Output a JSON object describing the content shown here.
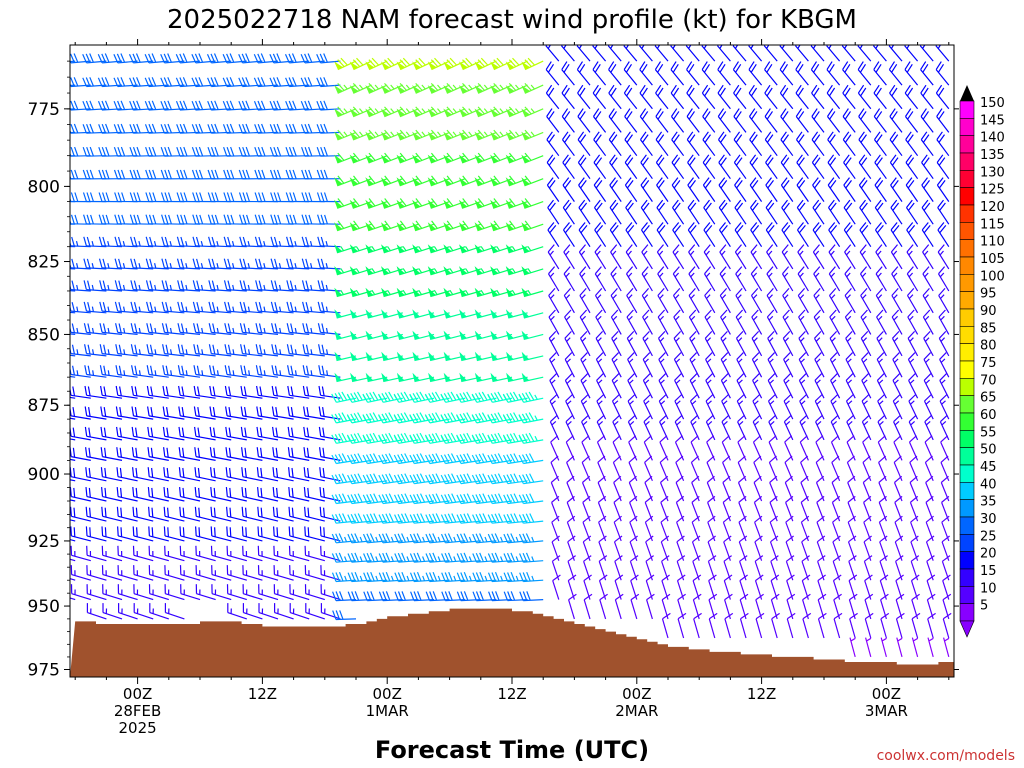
{
  "chart_data": {
    "type": "wind_barb_profile",
    "title": "2025022718 NAM forecast wind profile (kt) for KBGM",
    "xlabel": "Forecast Time (UTC)",
    "ylabel": "",
    "credit": "coolwx.com/models",
    "y_axis": {
      "scale": "pressure (inverted)",
      "ticks": [
        "775",
        "800",
        "825",
        "850",
        "875",
        "900",
        "925",
        "950",
        "975"
      ],
      "ylim": [
        978,
        755
      ]
    },
    "x_axis": {
      "units": "forecast hour",
      "xlim": [
        -6.5,
        78.5
      ],
      "ticks": [
        {
          "hour": 0,
          "line1": "00Z",
          "line2": "28FEB",
          "line3": "2025"
        },
        {
          "hour": 12,
          "line1": "12Z",
          "line2": "",
          "line3": ""
        },
        {
          "hour": 24,
          "line1": "00Z",
          "line2": "1MAR",
          "line3": ""
        },
        {
          "hour": 36,
          "line1": "12Z",
          "line2": "",
          "line3": ""
        },
        {
          "hour": 48,
          "line1": "00Z",
          "line2": "2MAR",
          "line3": ""
        },
        {
          "hour": 60,
          "line1": "12Z",
          "line2": "",
          "line3": ""
        },
        {
          "hour": 72,
          "line1": "00Z",
          "line2": "3MAR",
          "line3": ""
        }
      ]
    },
    "colorbar": {
      "units": "kt",
      "labels": [
        "150",
        "145",
        "140",
        "135",
        "130",
        "125",
        "120",
        "115",
        "110",
        "105",
        "100",
        "95",
        "90",
        "85",
        "80",
        "75",
        "70",
        "65",
        "60",
        "55",
        "50",
        "45",
        "40",
        "35",
        "30",
        "25",
        "20",
        "15",
        "10",
        "5"
      ],
      "colors": [
        "#ff00ff",
        "#ff00cc",
        "#ff0099",
        "#ff0066",
        "#ff0033",
        "#ff0000",
        "#ff3300",
        "#ff5500",
        "#ff7000",
        "#ff8800",
        "#ff9900",
        "#ffaa00",
        "#ffcc00",
        "#ffdd00",
        "#ffee00",
        "#ffff00",
        "#bbff00",
        "#66ff33",
        "#33ff33",
        "#00ff66",
        "#00ff99",
        "#00ffcc",
        "#00ccff",
        "#0099ff",
        "#0066ff",
        "#0044ff",
        "#0000ff",
        "#3300ff",
        "#5500ff",
        "#8800ff"
      ]
    },
    "surface_pressure": {
      "hours": [
        -6,
        -5,
        -4,
        -3,
        -2,
        -1,
        0,
        1,
        2,
        3,
        4,
        5,
        6,
        7,
        8,
        9,
        10,
        11,
        12,
        13,
        14,
        15,
        16,
        17,
        18,
        19,
        20,
        21,
        22,
        23,
        24,
        25,
        26,
        27,
        28,
        29,
        30,
        31,
        32,
        33,
        34,
        35,
        36,
        37,
        38,
        39,
        40,
        41,
        42,
        43,
        44,
        45,
        46,
        47,
        48,
        49,
        50,
        51,
        52,
        53,
        54,
        55,
        56,
        57,
        58,
        59,
        60,
        61,
        62,
        63,
        64,
        65,
        66,
        67,
        68,
        69,
        70,
        71,
        72,
        73,
        74,
        75,
        76,
        77,
        78
      ],
      "values_hPa": [
        956,
        956,
        957,
        957,
        957,
        957,
        957,
        957,
        957,
        957,
        957,
        957,
        956,
        956,
        956,
        956,
        957,
        957,
        958,
        958,
        958,
        958,
        958,
        958,
        958,
        958,
        957,
        957,
        956,
        955,
        954,
        954,
        953,
        953,
        952,
        952,
        951,
        951,
        951,
        951,
        951,
        951,
        952,
        952,
        953,
        954,
        955,
        956,
        957,
        958,
        959,
        960,
        961,
        962,
        963,
        964,
        965,
        966,
        966,
        967,
        967,
        968,
        968,
        968,
        969,
        969,
        969,
        970,
        970,
        970,
        970,
        971,
        971,
        971,
        972,
        972,
        972,
        972,
        972,
        973,
        973,
        973,
        973,
        972,
        972
      ],
      "color": "#a0522d"
    },
    "wind_barbs": {
      "hour_columns": [
        -6,
        -4.5,
        -3,
        -1.5,
        0,
        1.5,
        3,
        4.5,
        6,
        7.5,
        9,
        10.5,
        12,
        13.5,
        15,
        16.5,
        18,
        19.5,
        21,
        22.5,
        24,
        25.5,
        27,
        28.5,
        30,
        31.5,
        33,
        34.5,
        36,
        37.5,
        39,
        40.5,
        42,
        43.5,
        45,
        46.5,
        48,
        49.5,
        51,
        52.5,
        54,
        55.5,
        57,
        58.5,
        60,
        61.5,
        63,
        64.5,
        66,
        67.5,
        69,
        70.5,
        72,
        73.5,
        75,
        76.5,
        78
      ],
      "pressure_levels_hPa": [
        760,
        767.5,
        775,
        782.5,
        790,
        797.5,
        805,
        812.5,
        820,
        827.5,
        835,
        842.5,
        850,
        857.5,
        865,
        872.5,
        880,
        887.5,
        895,
        902.5,
        910,
        917.5,
        925,
        932.5,
        940,
        947.5,
        955,
        962.5,
        970
      ],
      "notes": "Barbs drawn for each hour/level above surface; direction and speed sampled from model field below",
      "regimes": [
        {
          "hours": [
            -6,
            20
          ],
          "direction_deg": 265,
          "speed_kt_top": 32,
          "speed_kt_bottom": 14
        },
        {
          "hours": [
            20,
            39
          ],
          "direction_deg": 245,
          "speed_kt_top": 68,
          "speed_kt_bottom": 28
        },
        {
          "hours": [
            39,
            78
          ],
          "direction_deg": 320,
          "speed_kt_top": 22,
          "speed_kt_bottom": 7
        }
      ]
    }
  }
}
